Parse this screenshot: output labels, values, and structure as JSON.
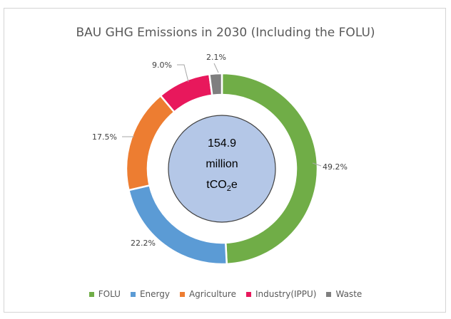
{
  "chart_data": {
    "type": "pie",
    "variant": "donut",
    "title": "BAU GHG Emissions in 2030 (Including the FOLU)",
    "center_text": {
      "value": "154.9",
      "unit_line1": "million",
      "unit_base": "tCO",
      "unit_sub": "2",
      "unit_tail": "e"
    },
    "slices": [
      {
        "label": "FOLU",
        "value": 49.2,
        "data_label": "49.2%",
        "color": "#70ad47"
      },
      {
        "label": "Energy",
        "value": 22.2,
        "data_label": "22.2%",
        "color": "#5b9bd5"
      },
      {
        "label": "Agriculture",
        "value": 17.5,
        "data_label": "17.5%",
        "color": "#ed7d31"
      },
      {
        "label": "Industry(IPPU)",
        "value": 9.0,
        "data_label": "9.0%",
        "color": "#e8185c"
      },
      {
        "label": "Waste",
        "value": 2.1,
        "data_label": "2.1%",
        "color": "#7f7f7f"
      }
    ],
    "legend_position": "bottom"
  }
}
